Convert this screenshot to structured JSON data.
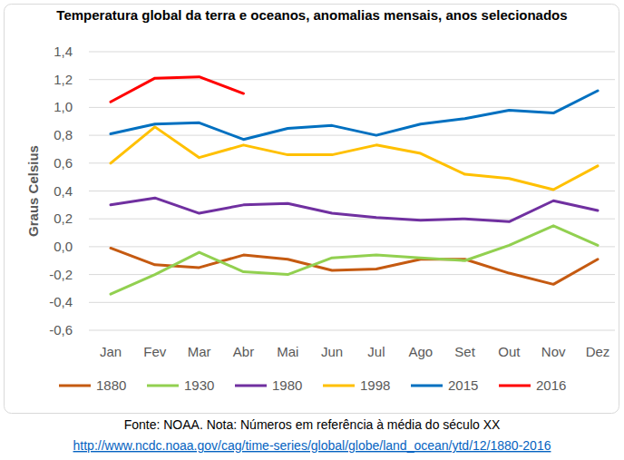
{
  "chart_data": {
    "type": "line",
    "title": "Temperatura global da terra e oceanos, anomalias mensais, anos selecionados",
    "y_label": "Graus Celsius",
    "source": "Fonte: NOAA. Nota: Números em referência à média do século XX",
    "source_url": "http://www.ncdc.noaa.gov/cag/time-series/global/globe/land_ocean/ytd/12/1880-2016",
    "categories": [
      "Jan",
      "Fev",
      "Mar",
      "Abr",
      "Mai",
      "Jun",
      "Jul",
      "Ago",
      "Set",
      "Out",
      "Nov",
      "Dez"
    ],
    "series": [
      {
        "name": "1880",
        "color": "#c55a11",
        "values": [
          -0.01,
          -0.13,
          -0.15,
          -0.06,
          -0.09,
          -0.17,
          -0.16,
          -0.09,
          -0.09,
          -0.19,
          -0.27,
          -0.09
        ]
      },
      {
        "name": "1930",
        "color": "#92d050",
        "values": [
          -0.34,
          -0.2,
          -0.04,
          -0.18,
          -0.2,
          -0.08,
          -0.06,
          -0.08,
          -0.1,
          0.01,
          0.15,
          0.01
        ]
      },
      {
        "name": "1980",
        "color": "#7030a0",
        "values": [
          0.3,
          0.35,
          0.24,
          0.3,
          0.31,
          0.24,
          0.21,
          0.19,
          0.2,
          0.18,
          0.33,
          0.26
        ]
      },
      {
        "name": "1998",
        "color": "#ffc000",
        "values": [
          0.6,
          0.86,
          0.64,
          0.73,
          0.66,
          0.66,
          0.73,
          0.67,
          0.52,
          0.49,
          0.41,
          0.58
        ]
      },
      {
        "name": "2015",
        "color": "#0070c0",
        "values": [
          0.81,
          0.88,
          0.89,
          0.77,
          0.85,
          0.87,
          0.8,
          0.88,
          0.92,
          0.98,
          0.96,
          1.12
        ]
      },
      {
        "name": "2016",
        "color": "#ff0000",
        "values": [
          1.04,
          1.21,
          1.22,
          1.1,
          null,
          null,
          null,
          null,
          null,
          null,
          null,
          null
        ]
      }
    ],
    "ylim": [
      -0.6,
      1.4
    ],
    "yticks": [
      {
        "value": -0.6,
        "label": "-0,6"
      },
      {
        "value": -0.4,
        "label": "-0,4"
      },
      {
        "value": -0.2,
        "label": "-0,2"
      },
      {
        "value": 0,
        "label": "0,0"
      },
      {
        "value": 0.2,
        "label": "0,2"
      },
      {
        "value": 0.4,
        "label": "0,4"
      },
      {
        "value": 0.6,
        "label": "0,6"
      },
      {
        "value": 0.8,
        "label": "0,8"
      },
      {
        "value": 1.0,
        "label": "1,0"
      },
      {
        "value": 1.2,
        "label": "1,2"
      },
      {
        "value": 1.4,
        "label": "1,4"
      }
    ],
    "grid": true,
    "legend": "bottom"
  }
}
